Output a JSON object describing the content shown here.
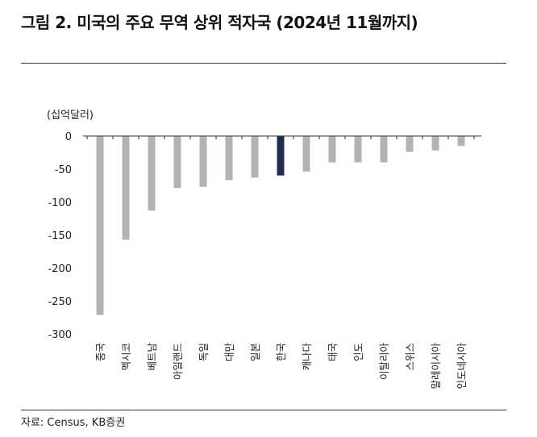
{
  "title": "그림 2. 미국의 주요 무역 상위 적자국 (2024년 11월까지)",
  "unit_label": "(십억달러)",
  "source": "자료: Census, KB증권",
  "colors": {
    "default_bar": "#b3b3b3",
    "highlight_bar": "#1f2d4f",
    "axis": "#333333"
  },
  "chart_data": {
    "type": "bar",
    "title": "그림 2. 미국의 주요 무역 상위 적자국 (2024년 11월까지)",
    "ylabel": "(십억달러)",
    "xlabel": "",
    "ylim": [
      -300,
      0
    ],
    "yticks": [
      0,
      -50,
      -100,
      -150,
      -200,
      -250,
      -300
    ],
    "ytick_labels": [
      "0",
      "-50",
      "-100",
      "-150",
      "-200",
      "-250",
      "-300"
    ],
    "grid": false,
    "categories": [
      "중국",
      "멕시코",
      "베트남",
      "아일랜드",
      "독일",
      "대만",
      "일본",
      "한국",
      "캐나다",
      "태국",
      "인도",
      "이탈리아",
      "스위스",
      "말레이시아",
      "인도네시아"
    ],
    "values": [
      -271,
      -157,
      -113,
      -79,
      -77,
      -67,
      -63,
      -60,
      -54,
      -40,
      -40,
      -40,
      -24,
      -22,
      -15
    ],
    "highlight_index": 7
  }
}
